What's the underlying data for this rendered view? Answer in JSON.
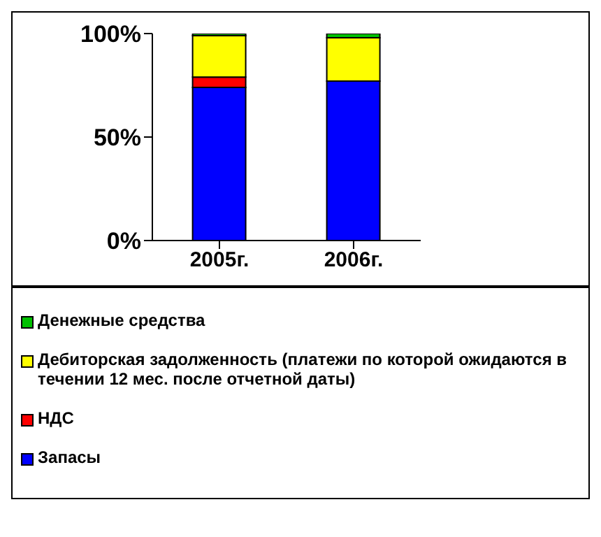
{
  "chart_data": {
    "type": "bar",
    "stacked": true,
    "categories": [
      "2005г.",
      "2006г."
    ],
    "series": [
      {
        "name": "Запасы",
        "color": "#0000ff",
        "values": [
          74,
          77
        ]
      },
      {
        "name": "НДС",
        "color": "#ff0000",
        "values": [
          5,
          0
        ]
      },
      {
        "name": "Дебиторская задолженность (платежи по которой ожидаются в течении 12 мес. после отчетной даты)",
        "color": "#ffff00",
        "values": [
          20,
          21
        ]
      },
      {
        "name": "Денежные средства",
        "color": "#00c000",
        "values": [
          1,
          2
        ]
      }
    ],
    "ylim": [
      0,
      100
    ],
    "yticks": [
      {
        "value": 0,
        "label": "0%"
      },
      {
        "value": 50,
        "label": "50%"
      },
      {
        "value": 100,
        "label": "100%"
      }
    ],
    "grid": false,
    "legend": "bottom"
  }
}
